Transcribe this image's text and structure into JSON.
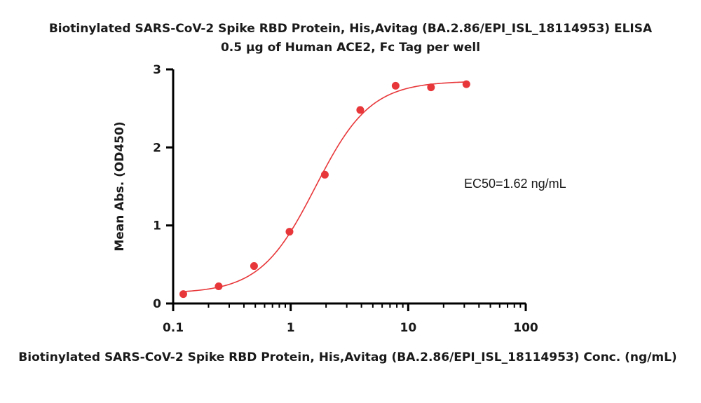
{
  "chart_data": {
    "type": "scatter",
    "title": "Biotinylated SARS-CoV-2 Spike RBD Protein, His,Avitag (BA.2.86/EPI_ISL_18114953) ELISA",
    "subtitle": "0.5 µg of Human ACE2, Fc Tag per well",
    "xlabel": "Biotinylated SARS-CoV-2 Spike RBD Protein, His,Avitag (BA.2.86/EPI_ISL_18114953) Conc. (ng/mL)",
    "ylabel": "Mean Abs. (OD450)",
    "x_scale": "log",
    "xlim": [
      0.1,
      100
    ],
    "ylim": [
      0,
      3
    ],
    "x_ticks": [
      "0.1",
      "1",
      "10",
      "100"
    ],
    "y_ticks": [
      "0",
      "1",
      "2",
      "3"
    ],
    "grid": false,
    "colors": {
      "series": "#e8373a"
    },
    "series": [
      {
        "x": [
          0.122,
          0.244,
          0.488,
          0.977,
          1.953,
          3.906,
          7.813,
          15.625,
          31.25
        ],
        "y": [
          0.12,
          0.22,
          0.48,
          0.92,
          1.65,
          2.48,
          2.79,
          2.77,
          2.81
        ]
      }
    ],
    "fit": {
      "model": "4PL",
      "bottom": 0.13,
      "top": 2.85,
      "ec50": 1.62,
      "hill": 1.85
    },
    "annotation": "EC50=1.62 ng/mL"
  }
}
